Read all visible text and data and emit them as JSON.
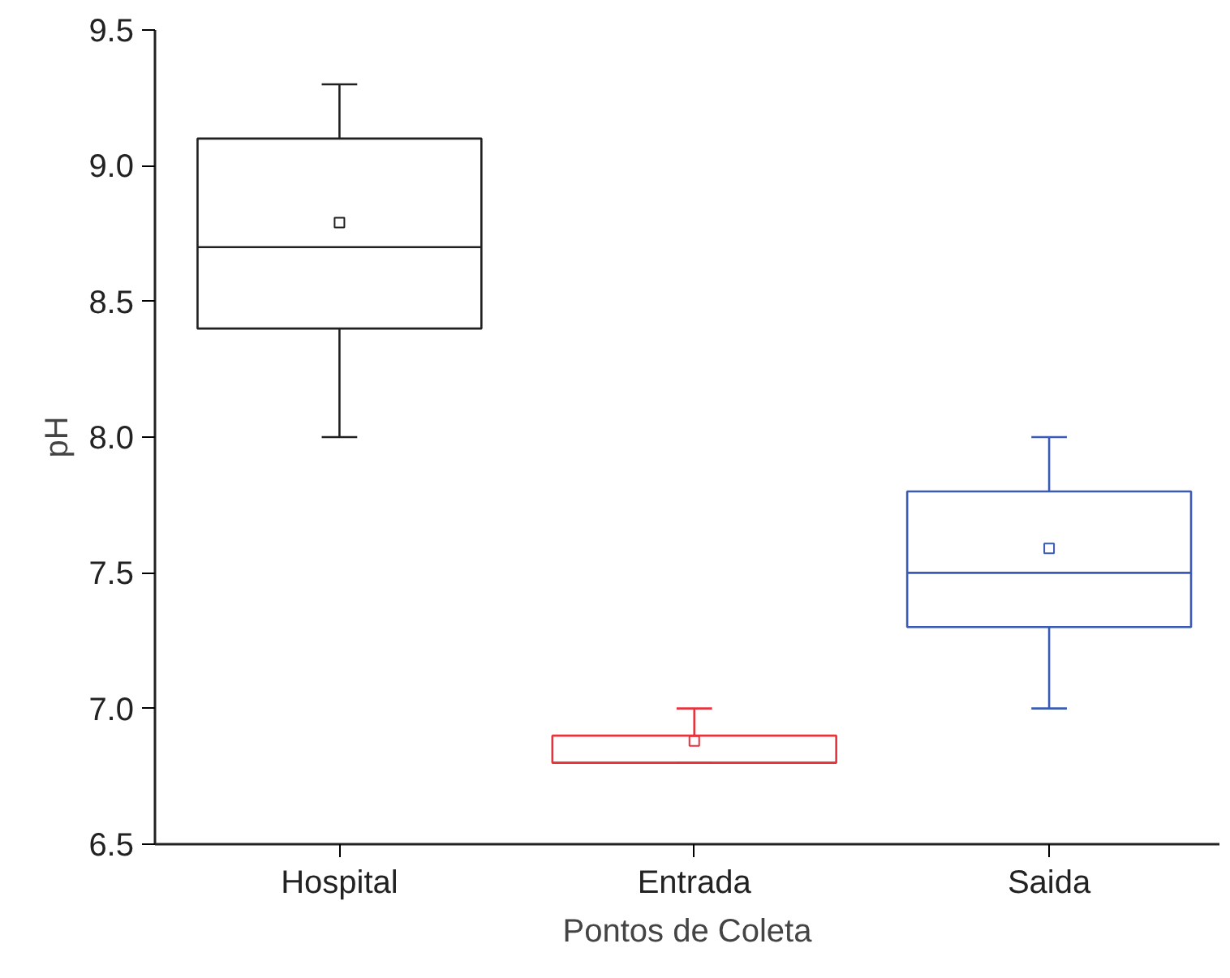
{
  "chart_data": {
    "type": "box",
    "xlabel": "Pontos de Coleta",
    "ylabel": "pH",
    "categories": [
      "Hospital",
      "Entrada",
      "Saida"
    ],
    "colors": [
      "#202020",
      "#e8323c",
      "#3a5bb5"
    ],
    "boxes": [
      {
        "low": 8.0,
        "q1": 8.4,
        "median": 8.7,
        "q3": 9.1,
        "high": 9.3,
        "mean": 8.79
      },
      {
        "low": 6.8,
        "q1": 6.8,
        "median": 6.8,
        "q3": 6.9,
        "high": 7.0,
        "mean": 6.88
      },
      {
        "low": 7.0,
        "q1": 7.3,
        "median": 7.5,
        "q3": 7.8,
        "high": 8.0,
        "mean": 7.59
      }
    ],
    "ylim": [
      6.5,
      9.5
    ],
    "yticks": [
      {
        "value": 6.5,
        "label": "6.5"
      },
      {
        "value": 7,
        "label": "7.0"
      },
      {
        "value": 7.5,
        "label": "7.5"
      },
      {
        "value": 8,
        "label": "8.0"
      },
      {
        "value": 8.5,
        "label": "8.5"
      },
      {
        "value": 9,
        "label": "9.0"
      },
      {
        "value": 9.5,
        "label": "9.5"
      }
    ],
    "grid": false
  }
}
